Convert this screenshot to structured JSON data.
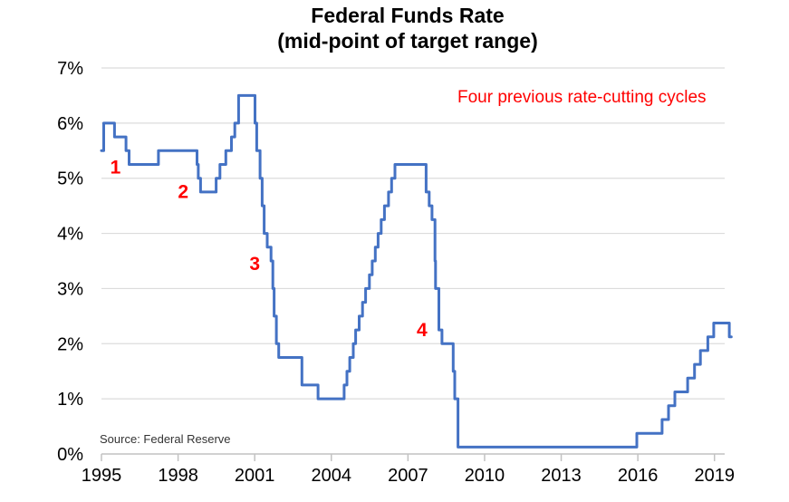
{
  "title": {
    "line1": "Federal Funds Rate",
    "line2": "(mid-point of target range)"
  },
  "annotation": "Four previous rate-cutting cycles",
  "source": "Source: Federal Reserve",
  "colors": {
    "line": "#4472c4",
    "annotation": "#ff0000",
    "cycle_label": "#ff0000",
    "gridline": "#dcdcdc",
    "axis": "#c2c2c2",
    "text": "#000000"
  },
  "chart_data": {
    "type": "line",
    "step": true,
    "title": "Federal Funds Rate (mid-point of target range)",
    "xlabel": "",
    "ylabel": "",
    "xlim": [
      1995,
      2019.4
    ],
    "ylim": [
      0,
      7
    ],
    "grid": "horizontal",
    "legend": "none",
    "x_ticks": [
      1995,
      1998,
      2001,
      2004,
      2007,
      2010,
      2013,
      2016,
      2019
    ],
    "x_tick_labels": [
      "1995",
      "1998",
      "2001",
      "2004",
      "2007",
      "2010",
      "2013",
      "2016",
      "2019"
    ],
    "y_ticks": [
      0,
      1,
      2,
      3,
      4,
      5,
      6,
      7
    ],
    "y_tick_labels": [
      "0%",
      "1%",
      "2%",
      "3%",
      "4%",
      "5%",
      "6%",
      "7%"
    ],
    "line_end_year": 2019.66,
    "series": [
      {
        "name": "Federal Funds Rate (mid-point of target range)",
        "points": [
          [
            1995.0,
            5.5
          ],
          [
            1995.09,
            6.0
          ],
          [
            1995.51,
            5.75
          ],
          [
            1995.96,
            5.5
          ],
          [
            1996.08,
            5.25
          ],
          [
            1997.23,
            5.5
          ],
          [
            1998.74,
            5.25
          ],
          [
            1998.79,
            5.0
          ],
          [
            1998.88,
            4.75
          ],
          [
            1999.49,
            5.0
          ],
          [
            1999.64,
            5.25
          ],
          [
            1999.87,
            5.5
          ],
          [
            2000.09,
            5.75
          ],
          [
            2000.22,
            6.0
          ],
          [
            2000.37,
            6.5
          ],
          [
            2001.01,
            6.0
          ],
          [
            2001.08,
            5.5
          ],
          [
            2001.21,
            5.0
          ],
          [
            2001.29,
            4.5
          ],
          [
            2001.37,
            4.0
          ],
          [
            2001.49,
            3.75
          ],
          [
            2001.64,
            3.5
          ],
          [
            2001.71,
            3.0
          ],
          [
            2001.76,
            2.5
          ],
          [
            2001.85,
            2.0
          ],
          [
            2001.94,
            1.75
          ],
          [
            2002.85,
            1.25
          ],
          [
            2003.48,
            1.0
          ],
          [
            2004.5,
            1.25
          ],
          [
            2004.61,
            1.5
          ],
          [
            2004.72,
            1.75
          ],
          [
            2004.86,
            2.0
          ],
          [
            2004.95,
            2.25
          ],
          [
            2005.09,
            2.5
          ],
          [
            2005.22,
            2.75
          ],
          [
            2005.34,
            3.0
          ],
          [
            2005.49,
            3.25
          ],
          [
            2005.6,
            3.5
          ],
          [
            2005.72,
            3.75
          ],
          [
            2005.83,
            4.0
          ],
          [
            2005.95,
            4.25
          ],
          [
            2006.08,
            4.5
          ],
          [
            2006.24,
            4.75
          ],
          [
            2006.36,
            5.0
          ],
          [
            2006.49,
            5.25
          ],
          [
            2007.71,
            4.75
          ],
          [
            2007.83,
            4.5
          ],
          [
            2007.94,
            4.25
          ],
          [
            2008.06,
            3.5
          ],
          [
            2008.08,
            3.0
          ],
          [
            2008.21,
            2.25
          ],
          [
            2008.33,
            2.0
          ],
          [
            2008.77,
            1.5
          ],
          [
            2008.83,
            1.0
          ],
          [
            2008.96,
            0.125
          ],
          [
            2015.96,
            0.375
          ],
          [
            2016.95,
            0.625
          ],
          [
            2017.2,
            0.875
          ],
          [
            2017.45,
            1.125
          ],
          [
            2017.95,
            1.375
          ],
          [
            2018.22,
            1.625
          ],
          [
            2018.45,
            1.875
          ],
          [
            2018.74,
            2.125
          ],
          [
            2018.97,
            2.375
          ],
          [
            2019.58,
            2.125
          ]
        ]
      }
    ],
    "cycle_labels": [
      {
        "text": "1",
        "year": 1995.55,
        "rate": 5.2
      },
      {
        "text": "2",
        "year": 1998.2,
        "rate": 4.76
      },
      {
        "text": "3",
        "year": 2001.0,
        "rate": 3.45
      },
      {
        "text": "4",
        "year": 2007.55,
        "rate": 2.25
      }
    ]
  }
}
